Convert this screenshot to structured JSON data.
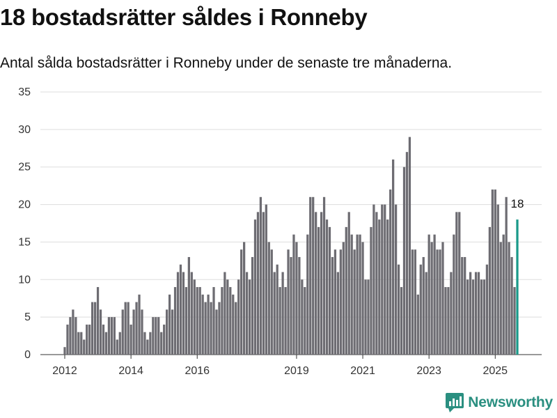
{
  "title": "18 bostadsrätter såldes i Ronneby",
  "subtitle": "Antal sålda bostadsrätter i Ronneby under de senaste tre månaderna.",
  "logo_text": "Newsworthy",
  "chart_data": {
    "type": "bar",
    "title": "18 bostadsrätter såldes i Ronneby",
    "subtitle": "Antal sålda bostadsrätter i Ronneby under de senaste tre månaderna.",
    "ylim": [
      0,
      35
    ],
    "y_ticks": [
      0,
      5,
      10,
      15,
      20,
      25,
      30,
      35
    ],
    "x_tick_labels": [
      "2012",
      "2014",
      "2016",
      "2019",
      "2021",
      "2023",
      "2025"
    ],
    "x_tick_index": [
      0,
      24,
      48,
      84,
      108,
      132,
      156
    ],
    "grid": true,
    "highlight_color": "#1a9a8a",
    "bar_color": "#6d6c72",
    "highlight_label": "18",
    "values": [
      1,
      4,
      5,
      6,
      5,
      3,
      3,
      2,
      4,
      4,
      7,
      7,
      9,
      6,
      4,
      3,
      5,
      5,
      5,
      2,
      3,
      6,
      7,
      7,
      4,
      6,
      7,
      8,
      6,
      3,
      2,
      3,
      5,
      5,
      5,
      3,
      4,
      6,
      8,
      6,
      9,
      11,
      12,
      11,
      9,
      13,
      11,
      10,
      9,
      9,
      8,
      7,
      8,
      7,
      9,
      6,
      7,
      9,
      11,
      10,
      9,
      8,
      7,
      10,
      14,
      15,
      11,
      10,
      13,
      18,
      19,
      21,
      19,
      20,
      15,
      14,
      11,
      12,
      9,
      11,
      9,
      14,
      13,
      16,
      15,
      13,
      10,
      9,
      16,
      21,
      21,
      19,
      17,
      19,
      21,
      18,
      17,
      13,
      14,
      11,
      14,
      15,
      17,
      19,
      16,
      14,
      16,
      16,
      15,
      10,
      10,
      17,
      20,
      19,
      18,
      20,
      20,
      18,
      22,
      26,
      20,
      12,
      9,
      25,
      27,
      29,
      14,
      14,
      8,
      12,
      13,
      11,
      16,
      15,
      16,
      14,
      14,
      15,
      9,
      9,
      11,
      16,
      19,
      19,
      13,
      13,
      10,
      11,
      10,
      11,
      11,
      10,
      10,
      12,
      17,
      22,
      22,
      20,
      15,
      16,
      21,
      15,
      13,
      9,
      18
    ]
  }
}
